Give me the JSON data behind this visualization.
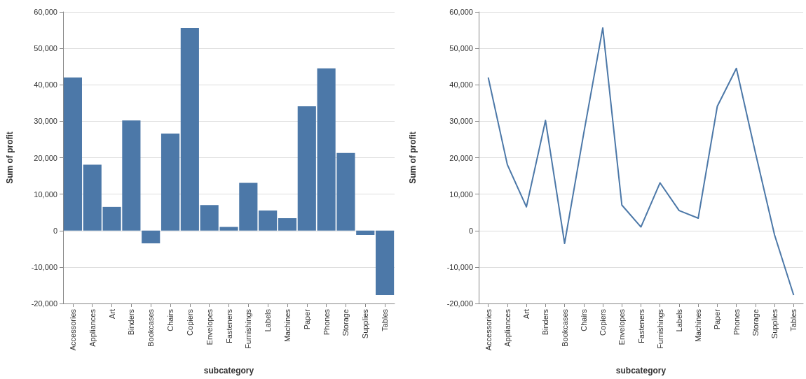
{
  "chart_data": [
    {
      "type": "bar",
      "categories": [
        "Accessories",
        "Appliances",
        "Art",
        "Binders",
        "Bookcases",
        "Chairs",
        "Copiers",
        "Envelopes",
        "Fasteners",
        "Furnishings",
        "Labels",
        "Machines",
        "Paper",
        "Phones",
        "Storage",
        "Supplies",
        "Tables"
      ],
      "values": [
        42000,
        18100,
        6500,
        30200,
        -3500,
        26600,
        55600,
        7000,
        1000,
        13100,
        5500,
        3400,
        34100,
        44500,
        21300,
        -1200,
        -17700
      ],
      "color": "#4c78a8",
      "xlabel": "subcategory",
      "ylabel": "Sum of profit",
      "ylim": [
        -20000,
        60000
      ],
      "yticks": [
        {
          "value": -20000,
          "label": "-20,000"
        },
        {
          "value": -10000,
          "label": "-10,000"
        },
        {
          "value": 0,
          "label": "0"
        },
        {
          "value": 10000,
          "label": "10,000"
        },
        {
          "value": 20000,
          "label": "20,000"
        },
        {
          "value": 30000,
          "label": "30,000"
        },
        {
          "value": 40000,
          "label": "40,000"
        },
        {
          "value": 50000,
          "label": "50,000"
        },
        {
          "value": 60000,
          "label": "60,000"
        }
      ],
      "grid": "y"
    },
    {
      "type": "line",
      "categories": [
        "Accessories",
        "Appliances",
        "Art",
        "Binders",
        "Bookcases",
        "Chairs",
        "Copiers",
        "Envelopes",
        "Fasteners",
        "Furnishings",
        "Labels",
        "Machines",
        "Paper",
        "Phones",
        "Storage",
        "Supplies",
        "Tables"
      ],
      "values": [
        42000,
        18100,
        6500,
        30200,
        -3500,
        26600,
        55600,
        7000,
        1000,
        13100,
        5500,
        3400,
        34100,
        44500,
        21300,
        -1200,
        -17700
      ],
      "color": "#4c78a8",
      "xlabel": "subcategory",
      "ylabel": "Sum of profit",
      "ylim": [
        -20000,
        60000
      ],
      "yticks": [
        {
          "value": -20000,
          "label": "-20,000"
        },
        {
          "value": -10000,
          "label": "-10,000"
        },
        {
          "value": 0,
          "label": "0"
        },
        {
          "value": 10000,
          "label": "10,000"
        },
        {
          "value": 20000,
          "label": "20,000"
        },
        {
          "value": 30000,
          "label": "30,000"
        },
        {
          "value": 40000,
          "label": "40,000"
        },
        {
          "value": 50000,
          "label": "50,000"
        },
        {
          "value": 60000,
          "label": "60,000"
        }
      ],
      "grid": "y"
    }
  ]
}
